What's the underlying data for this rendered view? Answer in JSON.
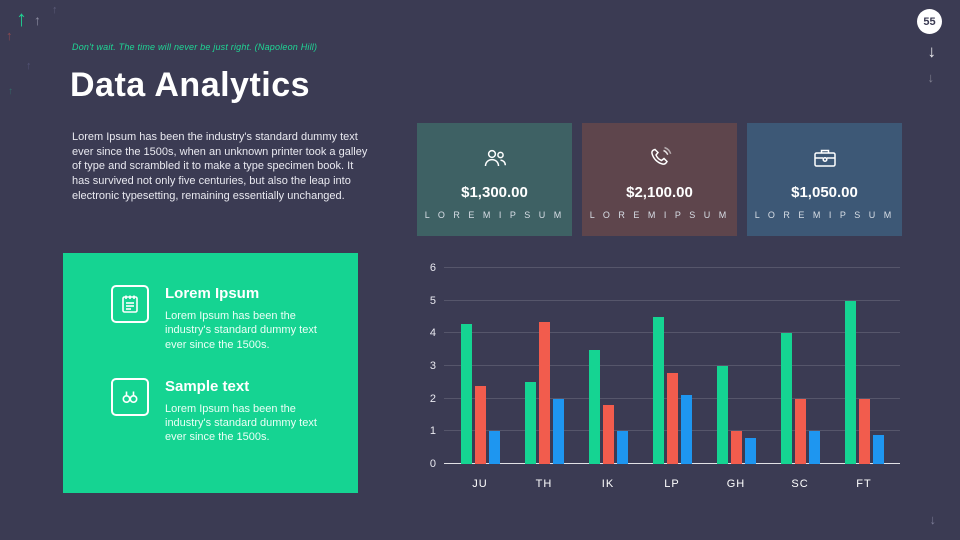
{
  "page": {
    "number": "55",
    "quote": "Don't wait. The time will never be just right. (Napoleon Hill)",
    "title": "Data Analytics",
    "intro": "Lorem Ipsum has been the industry's standard dummy text ever since the 1500s, when an unknown printer took a galley of type and scrambled it to make a type specimen book. It has survived not only five centuries, but also the leap into electronic typesetting, remaining essentially unchanged."
  },
  "icons": {
    "up_arrow": "↑",
    "down_arrow": "↓"
  },
  "features": [
    {
      "icon": "notepad-icon",
      "title": "Lorem Ipsum",
      "desc": "Lorem Ipsum has been the industry's standard dummy text ever since the 1500s."
    },
    {
      "icon": "binoculars-icon",
      "title": "Sample text",
      "desc": "Lorem Ipsum has been the industry's standard dummy text ever since the 1500s."
    }
  ],
  "stats": [
    {
      "icon": "people-icon",
      "value": "$1,300.00",
      "label": "L O R E M   I P S U M",
      "color": "#3e6164"
    },
    {
      "icon": "phone-icon",
      "value": "$2,100.00",
      "label": "L O R E M   I P S U M",
      "color": "#5e454c"
    },
    {
      "icon": "briefcase-icon",
      "value": "$1,050.00",
      "label": "L O R E M   I P S U M",
      "color": "#3d5876"
    }
  ],
  "chart_data": {
    "type": "bar",
    "title": "",
    "xlabel": "",
    "ylabel": "",
    "categories": [
      "JU",
      "TH",
      "IK",
      "LP",
      "GH",
      "SC",
      "FT"
    ],
    "series": [
      {
        "name": "series-green",
        "color": "#15d492",
        "values": [
          4.3,
          2.5,
          3.5,
          4.5,
          3.0,
          4.0,
          5.0
        ]
      },
      {
        "name": "series-red",
        "color": "#f25c4d",
        "values": [
          2.4,
          4.35,
          1.8,
          2.8,
          1.0,
          2.0,
          2.0
        ]
      },
      {
        "name": "series-blue",
        "color": "#1e96f0",
        "values": [
          1.0,
          2.0,
          1.0,
          2.1,
          0.8,
          1.0,
          0.9
        ]
      }
    ],
    "ylim": [
      0,
      6
    ],
    "yticks": [
      0,
      1,
      2,
      3,
      4,
      5,
      6
    ],
    "grid": "horizontal",
    "legend": "none"
  }
}
